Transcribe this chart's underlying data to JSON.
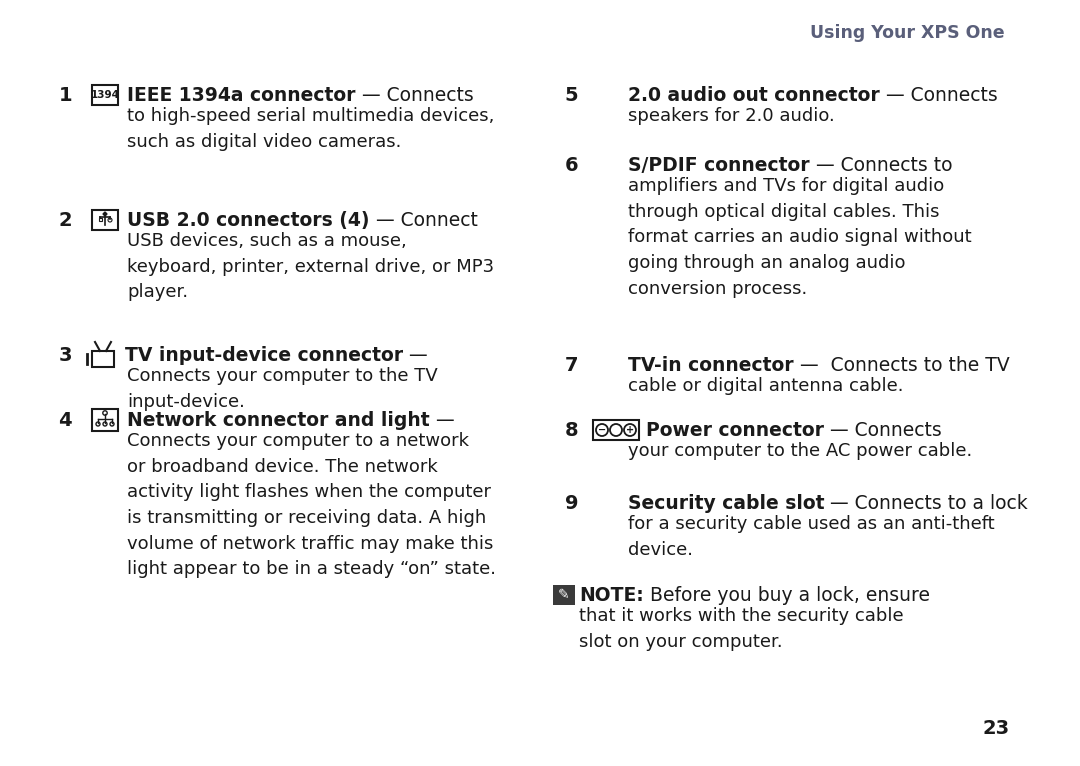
{
  "background_color": "#ffffff",
  "header_text": "Using Your XPS One",
  "header_color": "#5a5f7a",
  "page_number": "23",
  "text_color": "#1a1a1a",
  "body_color": "#1a1a1a",
  "font_size_heading": 13.5,
  "font_size_body": 13.0,
  "font_size_num": 14,
  "left_items": [
    {
      "num": "1",
      "has_icon": true,
      "icon_type": "1394",
      "bold_text": "IEEE 1394a connector",
      "normal_text": " — Connects",
      "body": "to high-speed serial multimedia devices,\nsuch as digital video cameras."
    },
    {
      "num": "2",
      "has_icon": true,
      "icon_type": "usb",
      "bold_text": "USB 2.0 connectors (4)",
      "normal_text": " — Connect",
      "body": "USB devices, such as a mouse,\nkeyboard, printer, external drive, or MP3\nplayer."
    },
    {
      "num": "3",
      "has_icon": true,
      "icon_type": "tv",
      "bold_text": "TV input-device connector",
      "normal_text": " —",
      "body": "Connects your computer to the TV\ninput-device."
    },
    {
      "num": "4",
      "has_icon": true,
      "icon_type": "net",
      "bold_text": "Network connector and light",
      "normal_text": " —",
      "body": "Connects your computer to a network\nor broadband device. The network\nactivity light flashes when the computer\nis transmitting or receiving data. A high\nvolume of network traffic may make this\nlight appear to be in a steady “on” state."
    }
  ],
  "right_items": [
    {
      "num": "5",
      "has_icon": false,
      "icon_type": null,
      "bold_text": "2.0 audio out connector",
      "normal_text": " — Connects",
      "body": "speakers for 2.0 audio."
    },
    {
      "num": "6",
      "has_icon": false,
      "icon_type": null,
      "bold_text": "S/PDIF connector",
      "normal_text": " — Connects to",
      "body": "amplifiers and TVs for digital audio\nthrough optical digital cables. This\nformat carries an audio signal without\ngoing through an analog audio\nconversion process."
    },
    {
      "num": "7",
      "has_icon": false,
      "icon_type": null,
      "bold_text": "TV-in connector",
      "normal_text": " —  Connects to the TV",
      "body": "cable or digital antenna cable."
    },
    {
      "num": "8",
      "has_icon": true,
      "icon_type": "power",
      "bold_text": "Power connector",
      "normal_text": " — Connects",
      "body": "your computer to the AC power cable."
    },
    {
      "num": "9",
      "has_icon": false,
      "icon_type": null,
      "bold_text": "Security cable slot",
      "normal_text": " — Connects to a lock",
      "body": "for a security cable used as an anti-theft\ndevice."
    },
    {
      "num": "note",
      "has_icon": true,
      "icon_type": "note",
      "bold_text": "NOTE:",
      "normal_text": " Before you buy a lock, ensure",
      "body": "that it works with the security cable\nslot on your computer."
    }
  ]
}
